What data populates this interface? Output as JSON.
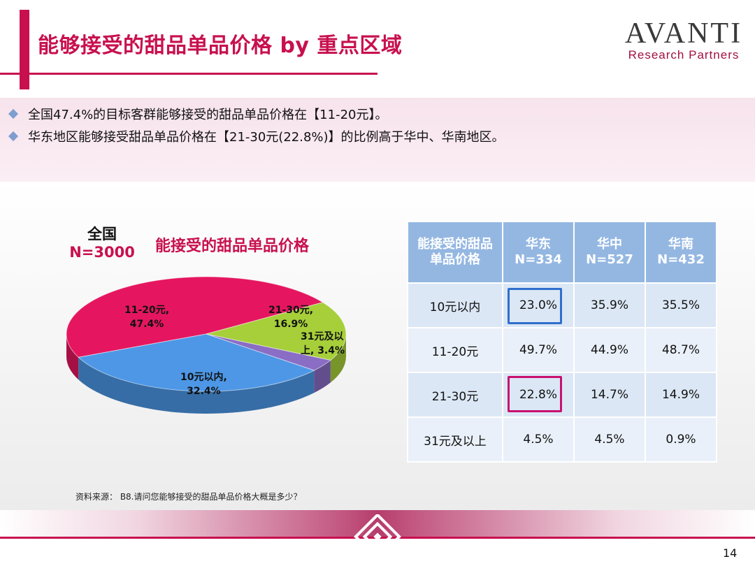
{
  "header": {
    "title": "能够接受的甜品单品价格 by 重点区域",
    "logo_main": "AVANTI",
    "logo_sub": "Research Partners"
  },
  "bullets": [
    "全国47.4%的目标客群能够接受的甜品单品价格在【11-20元】。",
    "华东地区能够接受甜品单品价格在【21-30元(22.8%)】的比例高于华中、华南地区。"
  ],
  "pie": {
    "region_name": "全国",
    "n_label": "N=3000",
    "title": "能接受的甜品单品价格"
  },
  "chart_data": [
    {
      "type": "pie",
      "title": "能接受的甜品单品价格",
      "slices": [
        {
          "label": "11-20元,",
          "value": 47.4,
          "value_label": "47.4%",
          "color": "#e5165f"
        },
        {
          "label": "21-30元,",
          "value": 16.9,
          "value_label": "16.9%",
          "color": "#a6cf3a"
        },
        {
          "label": "31元及以上,",
          "label_line1": "31元及以",
          "label_line2": "上, 3.4%",
          "value": 3.4,
          "value_label": "3.4%",
          "color": "#8a6dc4"
        },
        {
          "label": "10元以内,",
          "value": 32.4,
          "value_label": "32.4%",
          "color": "#4d97e6"
        }
      ]
    },
    {
      "type": "table",
      "columns": [
        {
          "line1": "能接受的甜品",
          "line2": "单品价格"
        },
        {
          "line1": "华东",
          "line2": "N=334"
        },
        {
          "line1": "华中",
          "line2": "N=527"
        },
        {
          "line1": "华南",
          "line2": "N=432"
        }
      ],
      "rows": [
        {
          "label": "10元以内",
          "values": [
            "23.0%",
            "35.9%",
            "35.5%"
          ]
        },
        {
          "label": "11-20元",
          "values": [
            "49.7%",
            "44.9%",
            "48.7%"
          ]
        },
        {
          "label": "21-30元",
          "values": [
            "22.8%",
            "14.7%",
            "14.9%"
          ]
        },
        {
          "label": "31元及以上",
          "values": [
            "4.5%",
            "4.5%",
            "0.9%"
          ]
        }
      ],
      "highlight_colors": {
        "row0": "#2f6fcc",
        "row2": "#c8106f"
      }
    }
  ],
  "source": "资料来源： B8.请问您能够接受的甜品单品价格大概是多少？",
  "page_number": "14"
}
